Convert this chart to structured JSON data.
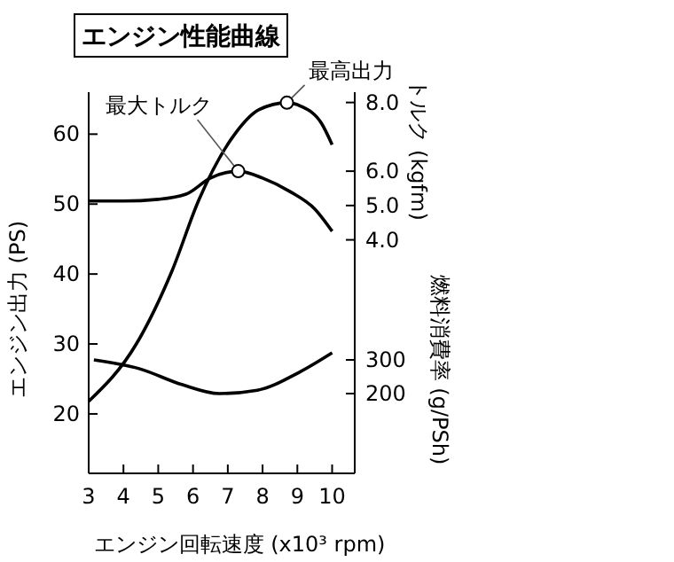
{
  "chart_data": {
    "type": "line",
    "title": "エンジン性能曲線",
    "xlabel": "エンジン回転速度 (x10³ rpm)",
    "ylabel": "エンジン出力 (PS)",
    "y2label": "トルク (kgfm)",
    "y3label": "燃料消費率 (g/PSh)",
    "xlim": [
      3,
      10.65
    ],
    "xticks": [
      3,
      4,
      5,
      6,
      7,
      8,
      9,
      10
    ],
    "ylim": [
      11.5,
      66
    ],
    "yticks": [
      20,
      30,
      40,
      50,
      60
    ],
    "y2lim": [
      -2.8,
      8.3
    ],
    "y2ticks": [
      {
        "value": 8,
        "label": "8.0"
      },
      {
        "value": 6,
        "label": "6.0"
      },
      {
        "value": 5,
        "label": "5.0"
      },
      {
        "value": 4,
        "label": "4.0"
      }
    ],
    "y3lim": [
      -37,
      1095
    ],
    "y3ticks": [
      200,
      300
    ],
    "series": [
      {
        "color": "#000000",
        "axis": "y",
        "x": [
          3,
          4.37,
          5.4,
          6.16,
          7.2,
          7.9,
          8.7,
          9.1,
          9.7,
          10
        ],
        "values": [
          21.8,
          30,
          40.5,
          50.5,
          60,
          63.5,
          64.5,
          64,
          61.5,
          58.5
        ]
      },
      {
        "color": "#000000",
        "axis": "y2",
        "x": [
          3,
          4,
          5,
          5.8,
          6.5,
          7.3,
          8,
          8.8,
          9.5,
          10
        ],
        "values": [
          5.13,
          5.13,
          5.18,
          5.33,
          5.8,
          6.0,
          5.8,
          5.4,
          4.9,
          4.25
        ]
      },
      {
        "color": "#000000",
        "axis": "y3",
        "x": [
          3.15,
          4.45,
          5.7,
          6.75,
          7.85,
          9.05,
          10
        ],
        "values": [
          300,
          274,
          226,
          200,
          210,
          263,
          321
        ]
      }
    ],
    "annotations": [
      "最高出力",
      "最大トルク"
    ],
    "line_style": "solid"
  }
}
